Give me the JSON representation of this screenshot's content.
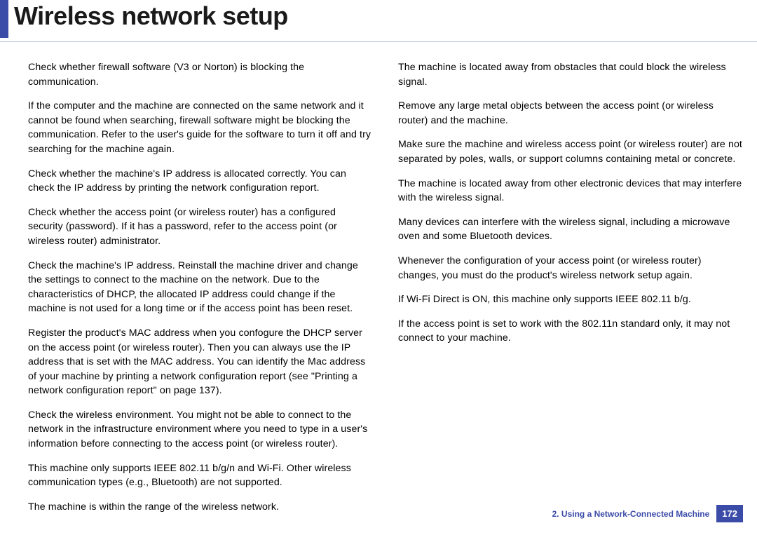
{
  "header": {
    "title": "Wireless network setup",
    "accent_color": "#3b4ba8"
  },
  "columns": {
    "left": [
      "Check whether firewall software (V3 or Norton) is blocking the communication.",
      "If the computer and the machine are connected on the same network and it cannot be found when searching, firewall software might be blocking the communication. Refer to the user's guide for the software to turn it off and try searching for the machine again.",
      "Check whether the machine's IP address is allocated correctly. You can check the IP address by printing the network configuration report.",
      "Check whether the access point (or wireless router) has a configured security (password). If it has a password, refer to the access point (or wireless router) administrator.",
      "Check the machine's IP address. Reinstall the machine driver and change the settings to connect to the machine on the network. Due to the characteristics of DHCP, the allocated IP address could change if the machine is not used for a long time or if the access point has been reset.",
      "Register the product's MAC address when you confogure the DHCP server on the access point (or wireless router). Then you can always use the IP address that is set with the MAC address. You can identify the Mac address of your machine by printing a network configuration report (see \"Printing a network configuration report\" on page 137).",
      "Check the wireless environment. You might not be able to connect to the network in the infrastructure environment where you need to type in a user's information before connecting to the access point (or wireless router).",
      "This machine only supports IEEE 802.11 b/g/n and Wi-Fi. Other wireless communication types (e.g., Bluetooth) are not supported.",
      "The machine is within the range of the wireless network."
    ],
    "right": [
      "The machine is located away from obstacles that could block the wireless signal.",
      "Remove any large metal objects between the access point (or wireless router) and the machine.",
      "Make sure the machine and wireless access point (or wireless router) are not separated by poles, walls, or support columns containing metal or concrete.",
      "The machine is located away from other electronic devices that may interfere with the wireless signal.",
      "Many devices can interfere with the wireless signal, including a microwave oven and some Bluetooth devices.",
      "Whenever the configuration of your access point (or wireless router) changes, you must do the product's wireless network setup again.",
      "If Wi-Fi Direct is ON, this machine only supports IEEE 802.11 b/g.",
      "If the access point is set to work with the 802.11n standard only, it may not connect to your machine."
    ]
  },
  "footer": {
    "chapter": "2.  Using a Network-Connected Machine",
    "page_number": "172",
    "badge_bg": "#3b4ba8"
  }
}
